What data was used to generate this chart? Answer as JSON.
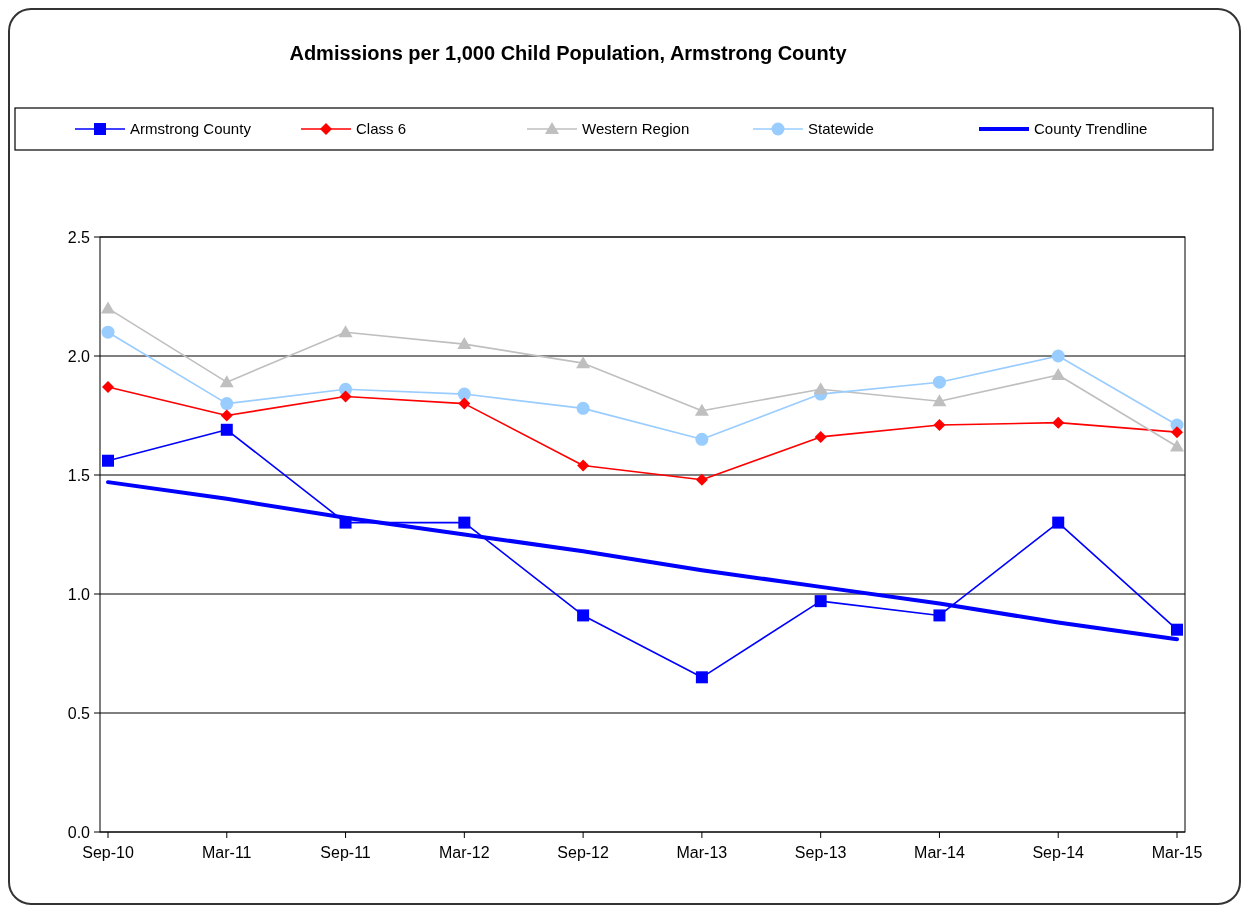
{
  "chart_data": {
    "type": "line",
    "title": "Admissions per 1,000 Child Population, Armstrong County",
    "categories": [
      "Sep-10",
      "Mar-11",
      "Sep-11",
      "Mar-12",
      "Sep-12",
      "Mar-13",
      "Sep-13",
      "Mar-14",
      "Sep-14",
      "Mar-15"
    ],
    "series": [
      {
        "name": "Armstrong County",
        "color": "#0000ff",
        "marker": "square",
        "values": [
          1.56,
          1.69,
          1.3,
          1.3,
          0.91,
          0.65,
          0.97,
          0.91,
          1.3,
          0.85
        ]
      },
      {
        "name": "Class 6",
        "color": "#ff0000",
        "marker": "diamond",
        "values": [
          1.87,
          1.75,
          1.83,
          1.8,
          1.54,
          1.48,
          1.66,
          1.71,
          1.72,
          1.68
        ]
      },
      {
        "name": "Western Region",
        "color": "#bfbfbf",
        "marker": "triangle",
        "values": [
          2.2,
          1.89,
          2.1,
          2.05,
          1.97,
          1.77,
          1.86,
          1.81,
          1.92,
          1.62
        ]
      },
      {
        "name": "Statewide",
        "color": "#99ccff",
        "marker": "circle",
        "values": [
          2.1,
          1.8,
          1.86,
          1.84,
          1.78,
          1.65,
          1.84,
          1.89,
          2.0,
          1.71
        ]
      },
      {
        "name": "County Trendline",
        "color": "#0000ff",
        "marker": "none",
        "values": [
          1.47,
          1.4,
          1.32,
          1.25,
          1.18,
          1.1,
          1.03,
          0.96,
          0.88,
          0.81
        ]
      }
    ],
    "ylim": [
      0,
      2.5
    ],
    "yticks": [
      {
        "value": 0,
        "label": "0.0"
      },
      {
        "value": 0.5,
        "label": "0.5"
      },
      {
        "value": 1,
        "label": "1.0"
      },
      {
        "value": 1.5,
        "label": "1.5"
      },
      {
        "value": 2,
        "label": "2.0"
      },
      {
        "value": 2.5,
        "label": "2.5"
      }
    ],
    "grid": "y",
    "legend": "top",
    "line_style": "solid"
  }
}
